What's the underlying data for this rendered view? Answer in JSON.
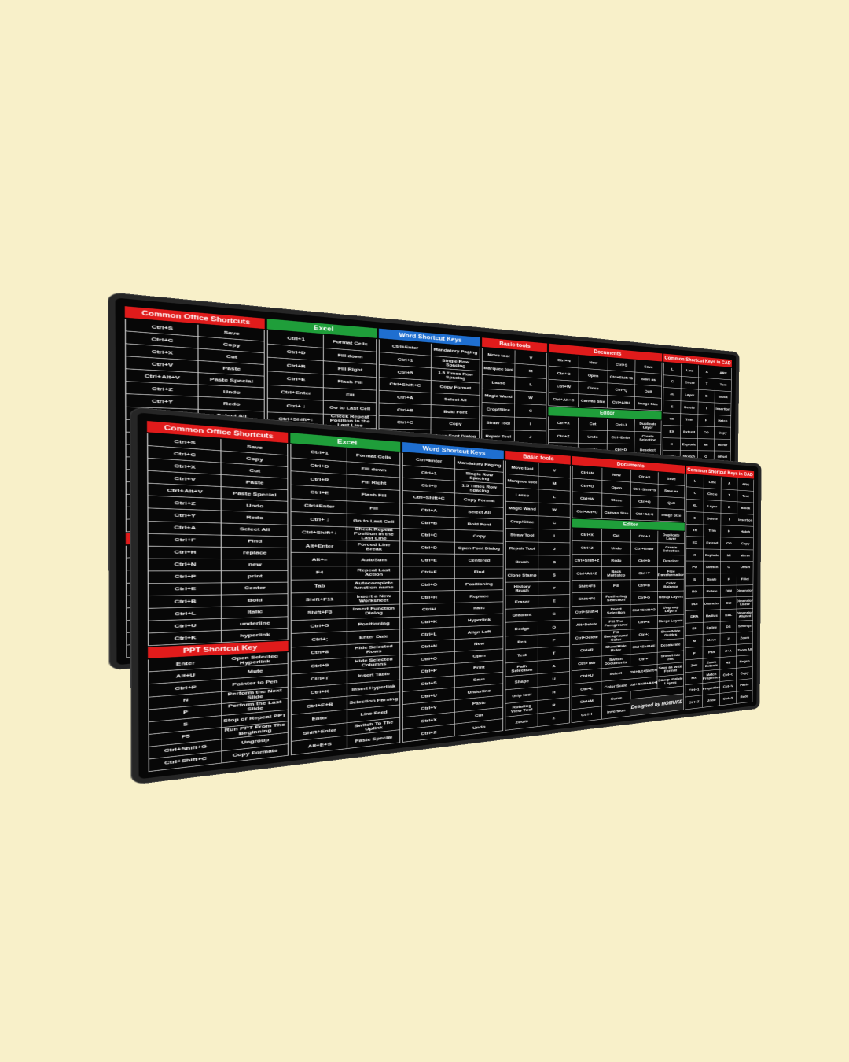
{
  "columns": [
    {
      "blocks": [
        {
          "title": "Common Office Shortcuts",
          "rows": [
            [
              "Ctrl+S",
              "Save"
            ],
            [
              "Ctrl+C",
              "Copy"
            ],
            [
              "Ctrl+X",
              "Cut"
            ],
            [
              "Ctrl+V",
              "Paste"
            ],
            [
              "Ctrl+Alt+V",
              "Paste Special"
            ],
            [
              "Ctrl+Z",
              "Undo"
            ],
            [
              "Ctrl+Y",
              "Redo"
            ],
            [
              "Ctrl+A",
              "Select All"
            ],
            [
              "Ctrl+F",
              "Find"
            ],
            [
              "Ctrl+H",
              "replace"
            ],
            [
              "Ctrl+N",
              "new"
            ],
            [
              "Ctrl+P",
              "print"
            ],
            [
              "Ctrl+E",
              "Center"
            ],
            [
              "Ctrl+B",
              "Bold"
            ],
            [
              "Ctrl+L",
              "Italic"
            ],
            [
              "Ctrl+U",
              "underline"
            ],
            [
              "Ctrl+K",
              "hyperlink"
            ]
          ]
        },
        {
          "title": "PPT Shortcut Key",
          "rows": [
            [
              "Enter",
              "Open Selected Hyperlink"
            ],
            [
              "Alt+U",
              "Mute"
            ],
            [
              "Ctrl+P",
              "Pointer to Pen"
            ],
            [
              "N",
              "Perform the Next Slide"
            ],
            [
              "P",
              "Perform the Last Slide"
            ],
            [
              "S",
              "Stop or Repeat PPT"
            ],
            [
              "F5",
              "Run PPT From The Beginning"
            ],
            [
              "Ctrl+Shift+G",
              "Ungroup"
            ],
            [
              "Ctrl+Shift+C",
              "Copy Formats"
            ]
          ]
        }
      ]
    },
    {
      "blocks": [
        {
          "title": "Excel",
          "rows": [
            [
              "Ctrl+1",
              "Format Cells"
            ],
            [
              "Ctrl+D",
              "Fill down"
            ],
            [
              "Ctrl+R",
              "Fill Right"
            ],
            [
              "Ctrl+E",
              "Flash Fill"
            ],
            [
              "Ctrl+Enter",
              "Fill"
            ],
            [
              "Ctrl+ ↓",
              "Go to Last Cell"
            ],
            [
              "Ctrl+Shift+↓",
              "Check Repeat Position in the Last Line"
            ],
            [
              "Alt+Enter",
              "Forced Line Break"
            ],
            [
              "Alt+=",
              "AutoSum"
            ],
            [
              "F4",
              "Repeat Last Action"
            ],
            [
              "Tab",
              "Autocomplete function name"
            ],
            [
              "Shift+F11",
              "Insert a New Worksheet"
            ],
            [
              "Shift+F3",
              "Insert Function Dialog"
            ],
            [
              "Ctrl+G",
              "Positioning"
            ],
            [
              "Ctrl+;",
              "Enter Date"
            ],
            [
              "Ctrl+8",
              "Hide Selected Rows"
            ],
            [
              "Ctrl+9",
              "Hide Selected Columns"
            ],
            [
              "Ctrl+T",
              "Insert Table"
            ],
            [
              "Ctrl+K",
              "Insert Hyperlink"
            ],
            [
              "Ctrl+E+B",
              "Selection Parsing"
            ],
            [
              "Enter",
              "Line Feed"
            ],
            [
              "Shift+Enter",
              "Switch To The Uplink"
            ],
            [
              "Alt+E+S",
              "Paste Special"
            ]
          ]
        }
      ]
    },
    {
      "blocks": [
        {
          "title": "Word Shortcut Keys",
          "rows": [
            [
              "Ctrl+Enter",
              "Mandatory Paging"
            ],
            [
              "Ctrl+1",
              "Single Row Spacing"
            ],
            [
              "Ctrl+5",
              "1.5 Times Row Spacing"
            ],
            [
              "Ctrl+Shift+C",
              "Copy Format"
            ],
            [
              "Ctrl+A",
              "Select All"
            ],
            [
              "Ctrl+B",
              "Bold Font"
            ],
            [
              "Ctrl+C",
              "Copy"
            ],
            [
              "Ctrl+D",
              "Open Font Dialog"
            ],
            [
              "Ctrl+E",
              "Centered"
            ],
            [
              "Ctrl+F",
              "Find"
            ],
            [
              "Ctrl+G",
              "Positioning"
            ],
            [
              "Ctrl+H",
              "Replace"
            ],
            [
              "Ctrl+I",
              "Italic"
            ],
            [
              "Ctrl+K",
              "Hyperlink"
            ],
            [
              "Ctrl+L",
              "Align Left"
            ],
            [
              "Ctrl+N",
              "New"
            ],
            [
              "Ctrl+O",
              "Open"
            ],
            [
              "Ctrl+P",
              "Print"
            ],
            [
              "Ctrl+S",
              "Save"
            ],
            [
              "Ctrl+U",
              "Underline"
            ],
            [
              "Ctrl+V",
              "Paste"
            ],
            [
              "Ctrl+X",
              "Cut"
            ],
            [
              "Ctrl+Z",
              "Undo"
            ]
          ]
        }
      ]
    },
    {
      "blocks": [
        {
          "title": "Basic tools",
          "rows": [
            [
              "Move tool",
              "V"
            ],
            [
              "Marquee tool",
              "M"
            ],
            [
              "Lasso",
              "L"
            ],
            [
              "Magic Wand",
              "W"
            ],
            [
              "Crop/Slice",
              "C"
            ],
            [
              "Straw Tool",
              "I"
            ],
            [
              "Repair Tool",
              "J"
            ],
            [
              "Brush",
              "B"
            ],
            [
              "Clone Stamp",
              "S"
            ],
            [
              "History Brush",
              "Y"
            ],
            [
              "Eraser",
              "E"
            ],
            [
              "Gradient",
              "G"
            ],
            [
              "Dodge",
              "O"
            ],
            [
              "Pen",
              "P"
            ],
            [
              "Text",
              "T"
            ],
            [
              "Path Selection",
              "A"
            ],
            [
              "Shape",
              "U"
            ],
            [
              "Grip tool",
              "H"
            ],
            [
              "Rotating View Tool",
              "R"
            ],
            [
              "Zoom",
              "Z"
            ]
          ]
        }
      ]
    },
    {
      "blocks": [
        {
          "title": "Documents",
          "rows": [
            [
              "Ctrl+N",
              "New",
              "Ctrl+S",
              "Save"
            ],
            [
              "Ctrl+O",
              "Open",
              "Ctrl+Shift+S",
              "Save as"
            ],
            [
              "Ctrl+W",
              "Close",
              "Ctrl+Q",
              "Quit"
            ],
            [
              "Ctrl+Alt+C",
              "Canvas Size",
              "Ctrl+Alt+I",
              "Image Size"
            ]
          ]
        },
        {
          "title": "Editor",
          "rows": [
            [
              "Ctrl+X",
              "Cut",
              "Ctrl+J",
              "Duplicate Layer"
            ],
            [
              "Ctrl+Z",
              "Undo",
              "Ctrl+Enter",
              "Create Selection"
            ],
            [
              "Ctrl+Shift+Z",
              "Redo",
              "Ctrl+D",
              "Deselect"
            ],
            [
              "Ctrl+Alt+Z",
              "Back Multistep",
              "Ctrl+T",
              "Free Transformation"
            ],
            [
              "Shift+F5",
              "Fill",
              "Ctrl+B",
              "Color Balance"
            ],
            [
              "Shift+F6",
              "Feathering Selection",
              "Ctrl+G",
              "Group Layers"
            ],
            [
              "Ctrl+Shift+I",
              "Invert Selection",
              "Ctrl+Shift+G",
              "Ungroup Layers"
            ],
            [
              "Alt+Delete",
              "Fill The Foreground",
              "Ctrl+E",
              "Merge Layers"
            ],
            [
              "Ctrl+Delete",
              "Fill Background Color",
              "Ctrl+;",
              "Show/Hide Guides"
            ],
            [
              "Ctrl+R",
              "Show/Hide Ruler",
              "Ctrl+Shift+E",
              "Desaturate"
            ],
            [
              "Ctrl+Tab",
              "Switch Documents",
              "Ctrl+'",
              "Show/Hide Grid"
            ],
            [
              "Ctrl+U",
              "Select",
              "Ctrl+Alt+Shift+S",
              "Save as WEB Format"
            ],
            [
              "Ctrl+L",
              "Color Scale",
              "Ctrl+Shift+Alt+E",
              "Stamp Visible Layers"
            ],
            [
              "Ctrl+M",
              "Curve"
            ],
            [
              "Ctrl+I",
              "Inversion"
            ]
          ]
        }
      ]
    },
    {
      "blocks": [
        {
          "title": "Common Shortcut Keys in CAD",
          "rows": [
            [
              "L",
              "Line",
              "A",
              "ARC"
            ],
            [
              "C",
              "Circle",
              "T",
              "Text"
            ],
            [
              "XL",
              "Layer",
              "B",
              "Block"
            ],
            [
              "E",
              "Delete",
              "I",
              "Insertion"
            ],
            [
              "TR",
              "Trim",
              "H",
              "Hatch"
            ],
            [
              "EX",
              "Extend",
              "CO",
              "Copy"
            ],
            [
              "X",
              "Explode",
              "MI",
              "Mirror"
            ],
            [
              "PO",
              "Stretch",
              "O",
              "Offset"
            ],
            [
              "S",
              "Scale",
              "F",
              "Fillet"
            ],
            [
              "RO",
              "Rotate",
              "DIM",
              "Dimension"
            ],
            [
              "DDI",
              "Diameter",
              "DLI",
              "Dimension Linear"
            ],
            [
              "DRA",
              "Radius",
              "DAL",
              "Dimension Aligned"
            ],
            [
              "SP",
              "Spline",
              "DS",
              "Settings"
            ],
            [
              "M",
              "Move",
              "Z",
              "Zoom"
            ],
            [
              "P",
              "Pan",
              "Z+A",
              "Zoom All"
            ],
            [
              "Z+E",
              "Zoom Extents",
              "RE",
              "Regen"
            ],
            [
              "MA",
              "Match Properties",
              "Ctrl+C",
              "Copy"
            ],
            [
              "Ctrl+1",
              "Properties",
              "Ctrl+V",
              "Paste"
            ],
            [
              "Ctrl+Z",
              "Undo",
              "Ctrl+Y",
              "Redo"
            ]
          ]
        }
      ]
    }
  ],
  "credit": "Designed by HOMUKE"
}
